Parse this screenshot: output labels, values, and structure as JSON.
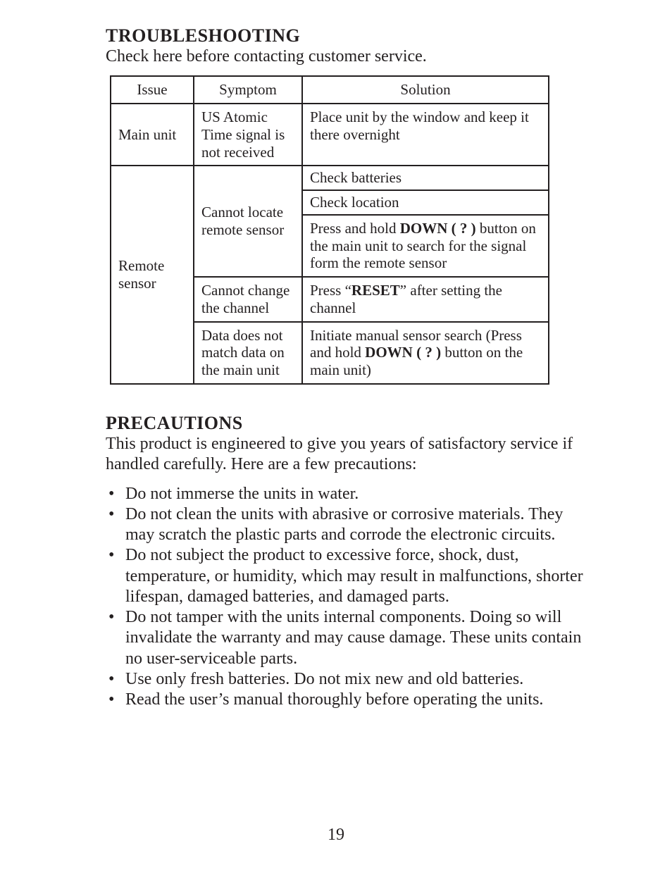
{
  "troubleshooting": {
    "heading": "TROUBLESHOOTING",
    "lead": "Check here before contacting customer service.",
    "table": {
      "headers": {
        "issue": "Issue",
        "symptom": "Symptom",
        "solution": "Solution"
      },
      "rows": {
        "r1": {
          "issue": "Main unit",
          "symptom": "US Atomic Time signal is not received",
          "solution": "Place unit by the window and keep it there overnight"
        },
        "r2_issue": "Remote sensor",
        "r2_symptom": "Cannot locate remote sensor",
        "r2_sol_a": "Check batteries",
        "r2_sol_b": "Check location",
        "r2_sol_c_pre": "Press and hold ",
        "r2_sol_c_bold": "DOWN ( ? )",
        "r2_sol_c_post": " button on the main unit to search for the signal form the remote sensor",
        "r3_symptom": "Cannot change the channel",
        "r3_sol_pre": "Press “",
        "r3_sol_bold": "RESET",
        "r3_sol_post": "” after setting the channel",
        "r4_symptom": "Data does not match data on the main unit",
        "r4_sol_pre": "Initiate manual sensor search (Press and hold ",
        "r4_sol_bold": "DOWN ( ? )",
        "r4_sol_post": " button on the main unit)"
      }
    }
  },
  "precautions": {
    "heading": "PRECAUTIONS",
    "lead": "This product is engineered to give you years of satisfactory service if handled carefully. Here are a few precautions:",
    "items": {
      "i1": "Do not immerse the units in water.",
      "i2": "Do not clean the units with abrasive or corrosive materials. They may scratch the plastic parts and corrode the electronic circuits.",
      "i3": "Do not subject the product to excessive force, shock, dust, temperature, or humidity, which may result in malfunctions, shorter lifespan, damaged batteries, and damaged parts.",
      "i4": "Do not tamper with the units internal components. Doing so will invalidate the warranty and may cause damage. These units contain no user-serviceable parts.",
      "i5": "Use only fresh batteries. Do not mix new and old batteries.",
      "i6": "Read the user’s manual thoroughly before operating the units."
    }
  },
  "page_number": "19",
  "bullet": "•"
}
